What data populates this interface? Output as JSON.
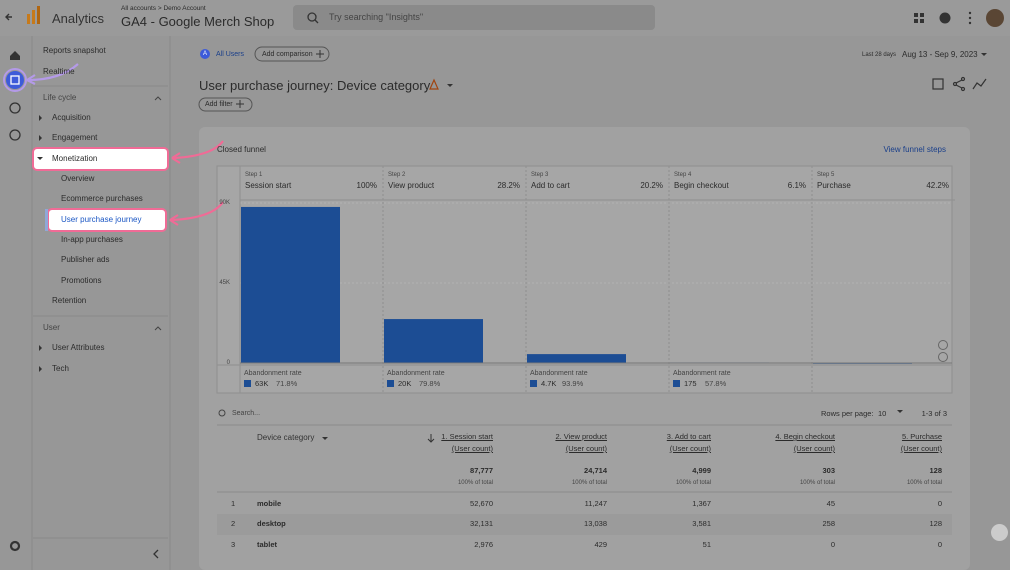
{
  "header": {
    "product": "Analytics",
    "breadcrumb": "All accounts > Demo Account",
    "property": "GA4 - Google Merch Shop",
    "search": "Try searching \"Insights\""
  },
  "sidebar": {
    "items": [
      "Reports snapshot",
      "Realtime",
      "Life cycle",
      "Acquisition",
      "Engagement",
      "Monetization",
      "Overview",
      "Ecommerce purchases",
      "User purchase journey",
      "In-app purchases",
      "Publisher ads",
      "Promotions",
      "Retention",
      "User",
      "User Attributes",
      "Tech"
    ]
  },
  "toolbar": {
    "segment_badge": "A",
    "segment": "All Users",
    "add_comparison": "Add comparison",
    "date_preset": "Last 28 days",
    "date_range": "Aug 13 - Sep 9, 2023"
  },
  "report": {
    "title": "User purchase journey: Device category",
    "add_filter": "Add filter",
    "funnel_label": "Closed funnel",
    "view_steps": "View funnel steps"
  },
  "chart_data": {
    "type": "bar",
    "steps": [
      "Step 1",
      "Step 2",
      "Step 3",
      "Step 4",
      "Step 5"
    ],
    "categories": [
      "Session start",
      "View product",
      "Add to cart",
      "Begin checkout",
      "Purchase"
    ],
    "completion_rates": [
      "100%",
      "28.2%",
      "20.2%",
      "6.1%",
      "42.2%"
    ],
    "values": [
      87777,
      24714,
      4999,
      303,
      128
    ],
    "color": "#1c4d94",
    "ylim": [
      0,
      90000
    ],
    "yticks": [
      0,
      {
        "value": 45000,
        "label": "45K"
      },
      {
        "value": 90000,
        "label": "90K"
      }
    ],
    "grid": true,
    "abandonment": {
      "label": "Abandonment rate",
      "counts": [
        "63K",
        "20K",
        "4.7K",
        "175"
      ],
      "rates": [
        "71.8%",
        "79.8%",
        "93.9%",
        "57.8%"
      ]
    }
  },
  "table": {
    "search": "Search...",
    "rows_per_page_label": "Rows per page:",
    "rows_per_page": "10",
    "pagination": "1-3 of 3",
    "columns": [
      "Device category",
      "1. Session start",
      "2. View product",
      "3. Add to cart",
      "4. Begin checkout",
      "5. Purchase"
    ],
    "metric_unit": "(User count)",
    "totals": [
      "87,777",
      "24,714",
      "4,999",
      "303",
      "128"
    ],
    "totals_note": "100% of total",
    "rows": [
      [
        "1",
        "mobile",
        "52,670",
        "11,247",
        "1,367",
        "45",
        "0"
      ],
      [
        "2",
        "desktop",
        "32,131",
        "13,038",
        "3,581",
        "258",
        "128"
      ],
      [
        "3",
        "tablet",
        "2,976",
        "429",
        "51",
        "0",
        "0"
      ]
    ]
  }
}
